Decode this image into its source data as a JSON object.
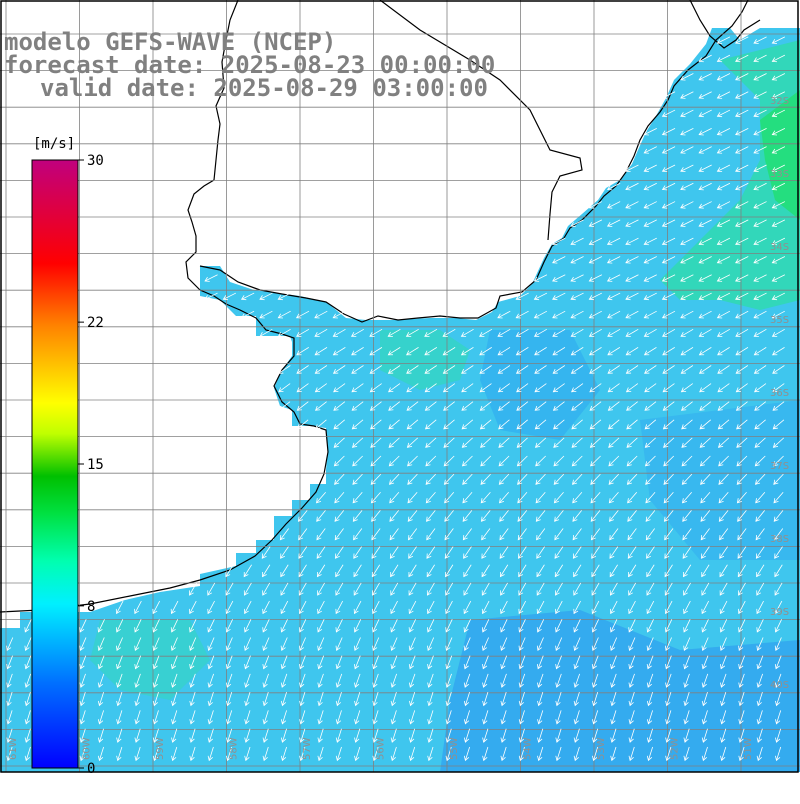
{
  "title": {
    "line1": "modelo GEFS-WAVE (NCEP)",
    "line2": "forecast date: 2025-08-23 00:00:00",
    "line3": "valid date: 2025-08-29 03:00:00"
  },
  "colorbar": {
    "unit": "[m/s]",
    "ticks": [
      {
        "value": 30,
        "label": "30"
      },
      {
        "value": 22,
        "label": "22"
      },
      {
        "value": 15,
        "label": "15"
      },
      {
        "value": 8,
        "label": "8"
      },
      {
        "value": 0,
        "label": "0"
      }
    ],
    "colors": [
      "#0000ff",
      "#0080ff",
      "#00e0ff",
      "#00ff80",
      "#00d000",
      "#80ff00",
      "#ffff00",
      "#ffa000",
      "#ff4000",
      "#ff0000",
      "#e00060",
      "#c00080"
    ]
  },
  "lat_labels": [
    "32S",
    "33S",
    "34S",
    "35S",
    "36S",
    "37S",
    "38S",
    "39S",
    "40S"
  ],
  "lon_labels": [
    "61W",
    "60W",
    "59W",
    "58W",
    "57W",
    "56W",
    "55W",
    "54W",
    "53W",
    "52W",
    "51W"
  ],
  "colors": {
    "land": "#ffffff",
    "grid": "#808080",
    "coast": "#000000",
    "arrow": "#ffffff"
  }
}
